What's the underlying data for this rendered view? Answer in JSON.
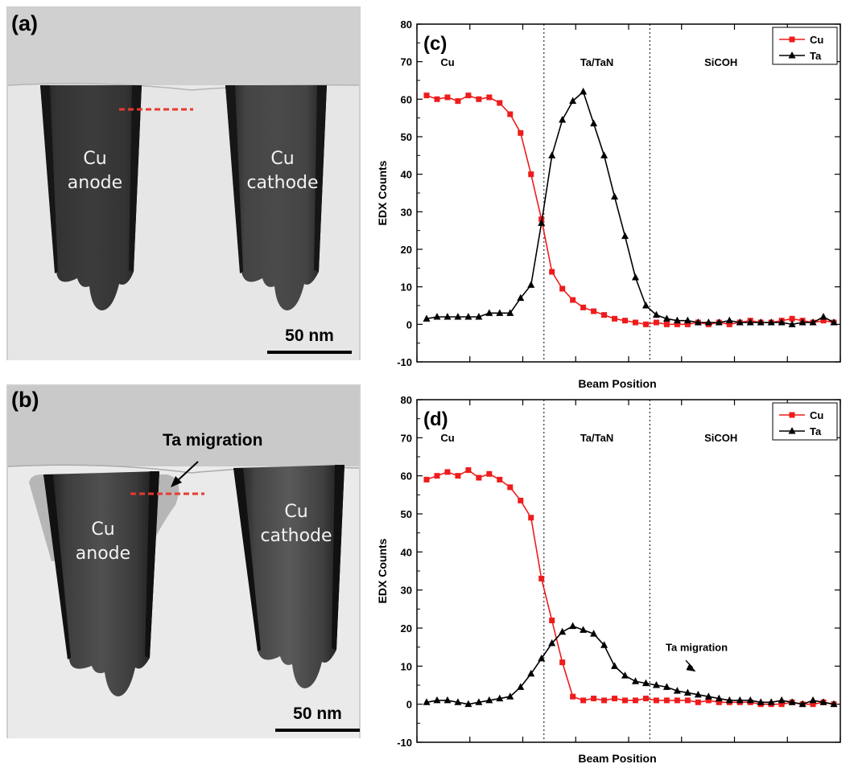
{
  "tem_a": {
    "panel_label": "(a)",
    "anode_line1": "Cu",
    "anode_line2": "anode",
    "cathode_line1": "Cu",
    "cathode_line2": "cathode",
    "scale_bar": "50 nm"
  },
  "tem_b": {
    "panel_label": "(b)",
    "anode_line1": "Cu",
    "anode_line2": "anode",
    "cathode_line1": "Cu",
    "cathode_line2": "cathode",
    "scale_bar": "50 nm",
    "annotation": "Ta migration"
  },
  "colors": {
    "cu_series": "#ee1c1c",
    "ta_series": "#000000",
    "linescan": "#e8392f"
  },
  "chart_data": [
    {
      "panel_label": "(c)",
      "type": "line",
      "xlabel": "Beam Position",
      "ylabel": "EDX Counts",
      "ylim": [
        -10,
        80
      ],
      "yticks": [
        -10,
        0,
        10,
        20,
        30,
        40,
        50,
        60,
        70,
        80
      ],
      "xlim": [
        0,
        40
      ],
      "grid": false,
      "legend": "top-right",
      "region_boundaries": [
        12,
        22
      ],
      "region_labels": [
        "Cu",
        "Ta/TaN",
        "SiCOH"
      ],
      "series": [
        {
          "name": "Cu",
          "marker": "square",
          "values": [
            61,
            60,
            60.5,
            59.5,
            61,
            60,
            60.5,
            59,
            56,
            51,
            40,
            28,
            14,
            9.5,
            6.5,
            4.5,
            3.5,
            2.5,
            1.5,
            1,
            0.5,
            0,
            0.5,
            0,
            0,
            0,
            0.5,
            0,
            0.5,
            0,
            0.5,
            1,
            0.5,
            0.5,
            1,
            1.5,
            1,
            0.5,
            1,
            0.5
          ]
        },
        {
          "name": "Ta",
          "marker": "triangle",
          "values": [
            1.5,
            2,
            2,
            2,
            2,
            2,
            3,
            3,
            3,
            7,
            10.5,
            27,
            45,
            54.5,
            59.5,
            62,
            53.5,
            45,
            34,
            23.5,
            12.5,
            5,
            2.5,
            1.5,
            1,
            1,
            0.5,
            0.5,
            0.5,
            1,
            0.5,
            0.5,
            0.5,
            0.5,
            0.5,
            0,
            0.5,
            0.5,
            2,
            0.5
          ]
        }
      ]
    },
    {
      "panel_label": "(d)",
      "type": "line",
      "xlabel": "Beam Position",
      "ylabel": "EDX Counts",
      "ylim": [
        -10,
        80
      ],
      "yticks": [
        -10,
        0,
        10,
        20,
        30,
        40,
        50,
        60,
        70,
        80
      ],
      "xlim": [
        0,
        40
      ],
      "grid": false,
      "legend": "top-right",
      "region_boundaries": [
        12,
        22
      ],
      "region_labels": [
        "Cu",
        "Ta/TaN",
        "SiCOH"
      ],
      "annotation": {
        "text": "Ta migration",
        "x": 26.5,
        "y": 9
      },
      "series": [
        {
          "name": "Cu",
          "marker": "square",
          "values": [
            59,
            60,
            61,
            60,
            61.5,
            59.5,
            60.5,
            59,
            57,
            53.5,
            49,
            33,
            22,
            11,
            2,
            1,
            1.5,
            1,
            1.5,
            1,
            1,
            1.5,
            1,
            1,
            1,
            1,
            0.5,
            1,
            0.5,
            0.5,
            0.5,
            0.5,
            0,
            0,
            0,
            0.5,
            0,
            0,
            0.5,
            0
          ]
        },
        {
          "name": "Ta",
          "marker": "triangle",
          "values": [
            0.5,
            1,
            1,
            0.5,
            0,
            0.5,
            1,
            1.5,
            2,
            4.5,
            8,
            12,
            16,
            19,
            20.5,
            19.5,
            18.5,
            15.5,
            10,
            7.5,
            6,
            5.5,
            5,
            4.5,
            3.5,
            3,
            2.5,
            2,
            1.5,
            1,
            1,
            1,
            0.5,
            0.5,
            1,
            0.5,
            0,
            1,
            0.5,
            0
          ]
        }
      ]
    }
  ]
}
